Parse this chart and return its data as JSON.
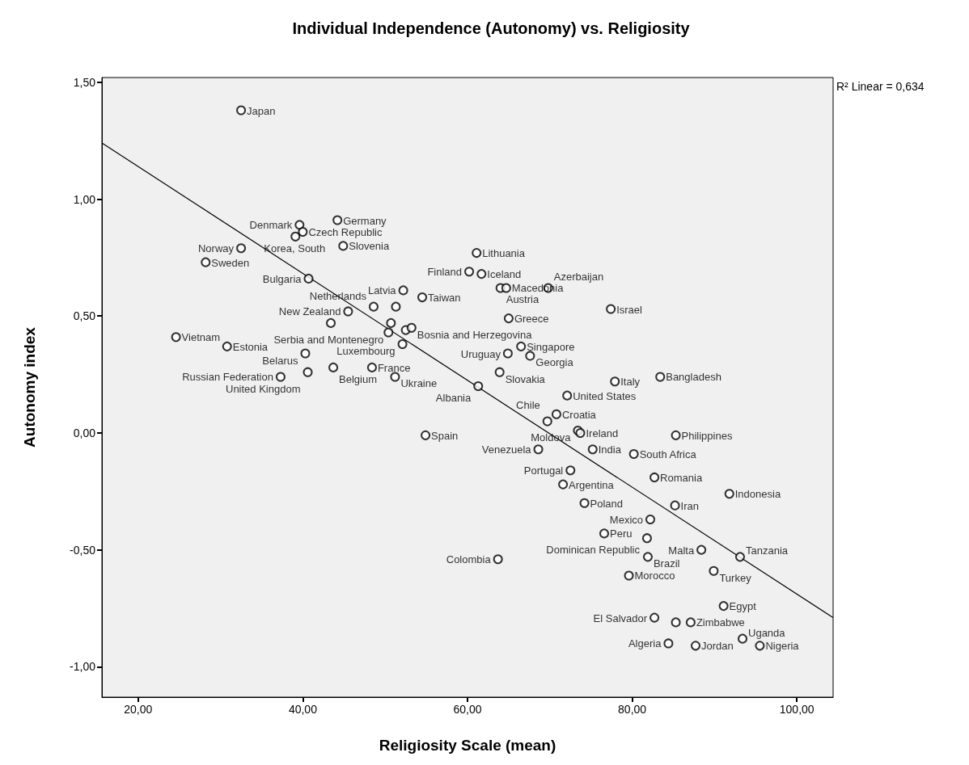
{
  "chart_data": {
    "type": "scatter",
    "title": "Individual Independence (Autonomy) vs. Religiosity",
    "xlabel": "Religiosity Scale (mean)",
    "ylabel": "Autonomy index",
    "marker": "circle",
    "xlim": [
      15.6,
      104.4
    ],
    "ylim": [
      -1.13,
      1.52
    ],
    "xticks": [
      {
        "value": 20,
        "label": "20,00"
      },
      {
        "value": 40,
        "label": "40,00"
      },
      {
        "value": 60,
        "label": "60,00"
      },
      {
        "value": 80,
        "label": "80,00"
      },
      {
        "value": 100,
        "label": "100,00"
      }
    ],
    "yticks": [
      {
        "value": -1,
        "label": "-1,00"
      },
      {
        "value": -0.5,
        "label": "-0,50"
      },
      {
        "value": 0,
        "label": "0,00"
      },
      {
        "value": 0.5,
        "label": "0,50"
      },
      {
        "value": 1,
        "label": "1,00"
      },
      {
        "value": 1.5,
        "label": "1,50"
      }
    ],
    "series": [
      {
        "color": "#000000",
        "x": [
          32.5,
          39.6,
          39.1,
          40.0,
          44.2,
          32.5,
          28.2,
          44.9,
          40.7,
          45.5,
          52.2,
          48.6,
          51.3,
          54.5,
          50.7,
          50.4,
          52.5,
          53.2,
          43.4,
          52.1,
          24.6,
          30.8,
          40.3,
          37.3,
          43.7,
          40.6,
          48.4,
          51.2,
          61.1,
          60.2,
          61.7,
          64.0,
          64.7,
          69.8,
          77.4,
          65.0,
          66.5,
          64.9,
          67.6,
          63.9,
          83.4,
          77.9,
          61.3,
          72.1,
          70.8,
          69.7,
          54.9,
          73.4,
          73.7,
          85.3,
          68.6,
          75.2,
          80.2,
          72.5,
          82.7,
          71.6,
          74.2,
          85.2,
          91.8,
          76.6,
          82.2,
          81.8,
          88.4,
          81.9,
          79.6,
          63.7,
          93.1,
          89.9,
          91.1,
          93.4,
          82.7,
          85.3,
          87.1,
          84.4,
          87.7,
          95.5
        ],
        "values": [
          1.38,
          0.89,
          0.84,
          0.86,
          0.91,
          0.79,
          0.73,
          0.8,
          0.66,
          0.52,
          0.61,
          0.54,
          0.54,
          0.58,
          0.47,
          0.43,
          0.44,
          0.45,
          0.47,
          0.38,
          0.41,
          0.37,
          0.34,
          0.24,
          0.28,
          0.26,
          0.28,
          0.24,
          0.77,
          0.69,
          0.68,
          0.62,
          0.62,
          0.62,
          0.53,
          0.49,
          0.37,
          0.34,
          0.33,
          0.26,
          0.24,
          0.22,
          0.2,
          0.16,
          0.08,
          0.05,
          -0.01,
          0.01,
          0.0,
          -0.01,
          -0.07,
          -0.07,
          -0.09,
          -0.16,
          -0.19,
          -0.22,
          -0.3,
          -0.31,
          -0.26,
          -0.43,
          -0.37,
          -0.45,
          -0.5,
          -0.53,
          -0.61,
          -0.54,
          -0.53,
          -0.59,
          -0.74,
          -0.88,
          -0.79,
          -0.81,
          -0.81,
          -0.9,
          -0.91,
          -0.91
        ]
      },
      {
        "type": "line",
        "color": "#000000",
        "marker": "none",
        "x": [
          15.6,
          104.4
        ],
        "values": [
          1.24,
          -0.79
        ]
      }
    ],
    "annotations": [
      "R² Linear = 0,634",
      {
        "text": "Japan",
        "x": 32.5,
        "y": 1.38
      },
      {
        "text": "Denmark",
        "x": 39.6,
        "y": 0.89
      },
      {
        "text": "Korea, South",
        "x": 39.1,
        "y": 0.84
      },
      {
        "text": "Czech Republic",
        "x": 40.0,
        "y": 0.86
      },
      {
        "text": "Germany",
        "x": 44.2,
        "y": 0.91
      },
      {
        "text": "Norway",
        "x": 32.5,
        "y": 0.79
      },
      {
        "text": "Sweden",
        "x": 28.2,
        "y": 0.73
      },
      {
        "text": "Slovenia",
        "x": 44.9,
        "y": 0.8
      },
      {
        "text": "Bulgaria",
        "x": 40.7,
        "y": 0.66
      },
      {
        "text": "New Zealand",
        "x": 45.5,
        "y": 0.52
      },
      {
        "text": "Latvia",
        "x": 52.2,
        "y": 0.61
      },
      {
        "text": "Netherlands",
        "x": 48.6,
        "y": 0.54
      },
      {
        "text": "Taiwan",
        "x": 54.5,
        "y": 0.58
      },
      {
        "text": "Serbia and Montenegro",
        "x": 50.7,
        "y": 0.47
      },
      {
        "text": "Bosnia and Herzegovina",
        "x": 53.2,
        "y": 0.45
      },
      {
        "text": "Luxembourg",
        "x": 52.1,
        "y": 0.38
      },
      {
        "text": "Vietnam",
        "x": 24.6,
        "y": 0.41
      },
      {
        "text": "Estonia",
        "x": 30.8,
        "y": 0.37
      },
      {
        "text": "Belarus",
        "x": 40.3,
        "y": 0.34
      },
      {
        "text": "Russian Federation",
        "x": 37.3,
        "y": 0.24
      },
      {
        "text": "Belgium",
        "x": 43.7,
        "y": 0.28
      },
      {
        "text": "United Kingdom",
        "x": 40.6,
        "y": 0.26
      },
      {
        "text": "France",
        "x": 48.4,
        "y": 0.28
      },
      {
        "text": "Ukraine",
        "x": 51.2,
        "y": 0.24
      },
      {
        "text": "Lithuania",
        "x": 61.1,
        "y": 0.77
      },
      {
        "text": "Finland",
        "x": 60.2,
        "y": 0.69
      },
      {
        "text": "Iceland",
        "x": 61.7,
        "y": 0.68
      },
      {
        "text": "Austria",
        "x": 64.0,
        "y": 0.62
      },
      {
        "text": "Macedonia",
        "x": 64.7,
        "y": 0.62
      },
      {
        "text": "Azerbaijan",
        "x": 69.8,
        "y": 0.62
      },
      {
        "text": "Israel",
        "x": 77.4,
        "y": 0.53
      },
      {
        "text": "Greece",
        "x": 65.0,
        "y": 0.49
      },
      {
        "text": "Singapore",
        "x": 66.5,
        "y": 0.37
      },
      {
        "text": "Uruguay",
        "x": 64.9,
        "y": 0.34
      },
      {
        "text": "Georgia",
        "x": 67.6,
        "y": 0.33
      },
      {
        "text": "Slovakia",
        "x": 63.9,
        "y": 0.26
      },
      {
        "text": "Bangladesh",
        "x": 83.4,
        "y": 0.24
      },
      {
        "text": "Italy",
        "x": 77.9,
        "y": 0.22
      },
      {
        "text": "Albania",
        "x": 61.3,
        "y": 0.2
      },
      {
        "text": "United States",
        "x": 72.1,
        "y": 0.16
      },
      {
        "text": "Croatia",
        "x": 70.8,
        "y": 0.08
      },
      {
        "text": "Chile",
        "x": 69.7,
        "y": 0.05
      },
      {
        "text": "Spain",
        "x": 54.9,
        "y": -0.01
      },
      {
        "text": "Moldova",
        "x": 73.4,
        "y": 0.01
      },
      {
        "text": "Ireland",
        "x": 73.7,
        "y": 0.0
      },
      {
        "text": "Philippines",
        "x": 85.3,
        "y": -0.01
      },
      {
        "text": "Venezuela",
        "x": 68.6,
        "y": -0.07
      },
      {
        "text": "India",
        "x": 75.2,
        "y": -0.07
      },
      {
        "text": "South Africa",
        "x": 80.2,
        "y": -0.09
      },
      {
        "text": "Portugal",
        "x": 72.5,
        "y": -0.16
      },
      {
        "text": "Romania",
        "x": 82.7,
        "y": -0.19
      },
      {
        "text": "Argentina",
        "x": 71.6,
        "y": -0.22
      },
      {
        "text": "Poland",
        "x": 74.2,
        "y": -0.3
      },
      {
        "text": "Iran",
        "x": 85.2,
        "y": -0.31
      },
      {
        "text": "Indonesia",
        "x": 91.8,
        "y": -0.26
      },
      {
        "text": "Peru",
        "x": 76.6,
        "y": -0.43
      },
      {
        "text": "Mexico",
        "x": 82.2,
        "y": -0.37
      },
      {
        "text": "Dominican Republic",
        "x": 81.8,
        "y": -0.45
      },
      {
        "text": "Malta",
        "x": 88.4,
        "y": -0.5
      },
      {
        "text": "Brazil",
        "x": 81.9,
        "y": -0.53
      },
      {
        "text": "Morocco",
        "x": 79.6,
        "y": -0.61
      },
      {
        "text": "Colombia",
        "x": 63.7,
        "y": -0.54
      },
      {
        "text": "Tanzania",
        "x": 93.1,
        "y": -0.53
      },
      {
        "text": "Turkey",
        "x": 89.9,
        "y": -0.59
      },
      {
        "text": "Egypt",
        "x": 91.1,
        "y": -0.74
      },
      {
        "text": "Uganda",
        "x": 93.4,
        "y": -0.88
      },
      {
        "text": "El Salvador",
        "x": 82.7,
        "y": -0.79
      },
      {
        "text": "Zimbabwe",
        "x": 87.1,
        "y": -0.81
      },
      {
        "text": "Algeria",
        "x": 84.4,
        "y": -0.9
      },
      {
        "text": "Jordan",
        "x": 87.7,
        "y": -0.91
      },
      {
        "text": "Nigeria",
        "x": 95.5,
        "y": -0.91
      }
    ]
  }
}
